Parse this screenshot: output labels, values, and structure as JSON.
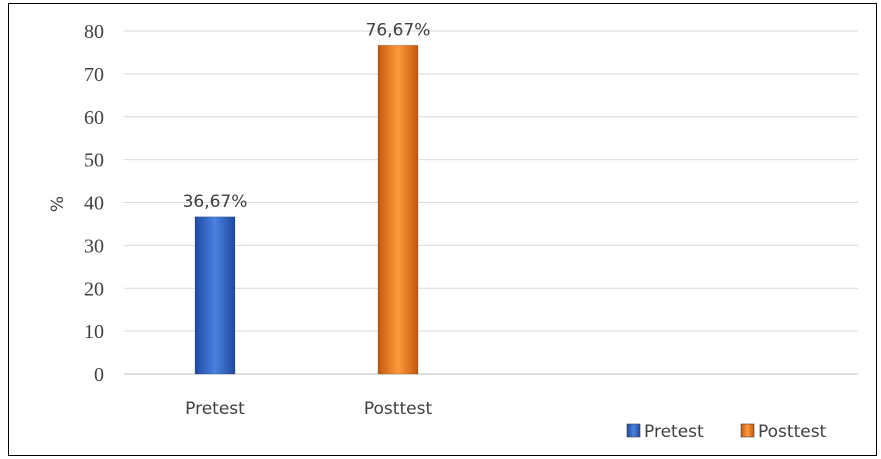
{
  "chart_data": {
    "type": "bar",
    "categories": [
      "Pretest",
      "Posttest"
    ],
    "series": [
      {
        "name": "Pretest",
        "values": [
          36.67,
          null
        ],
        "color": "#2f5fbf",
        "data_label": "36,67%"
      },
      {
        "name": "Posttest",
        "values": [
          null,
          76.67
        ],
        "color": "#e8741e",
        "data_label": "76,67%"
      }
    ],
    "ylabel": "%",
    "xlabel": "",
    "ylim": [
      0,
      80
    ],
    "yticks": [
      0,
      10,
      20,
      30,
      40,
      50,
      60,
      70,
      80
    ],
    "grid": true,
    "legend": "bottom-right"
  }
}
